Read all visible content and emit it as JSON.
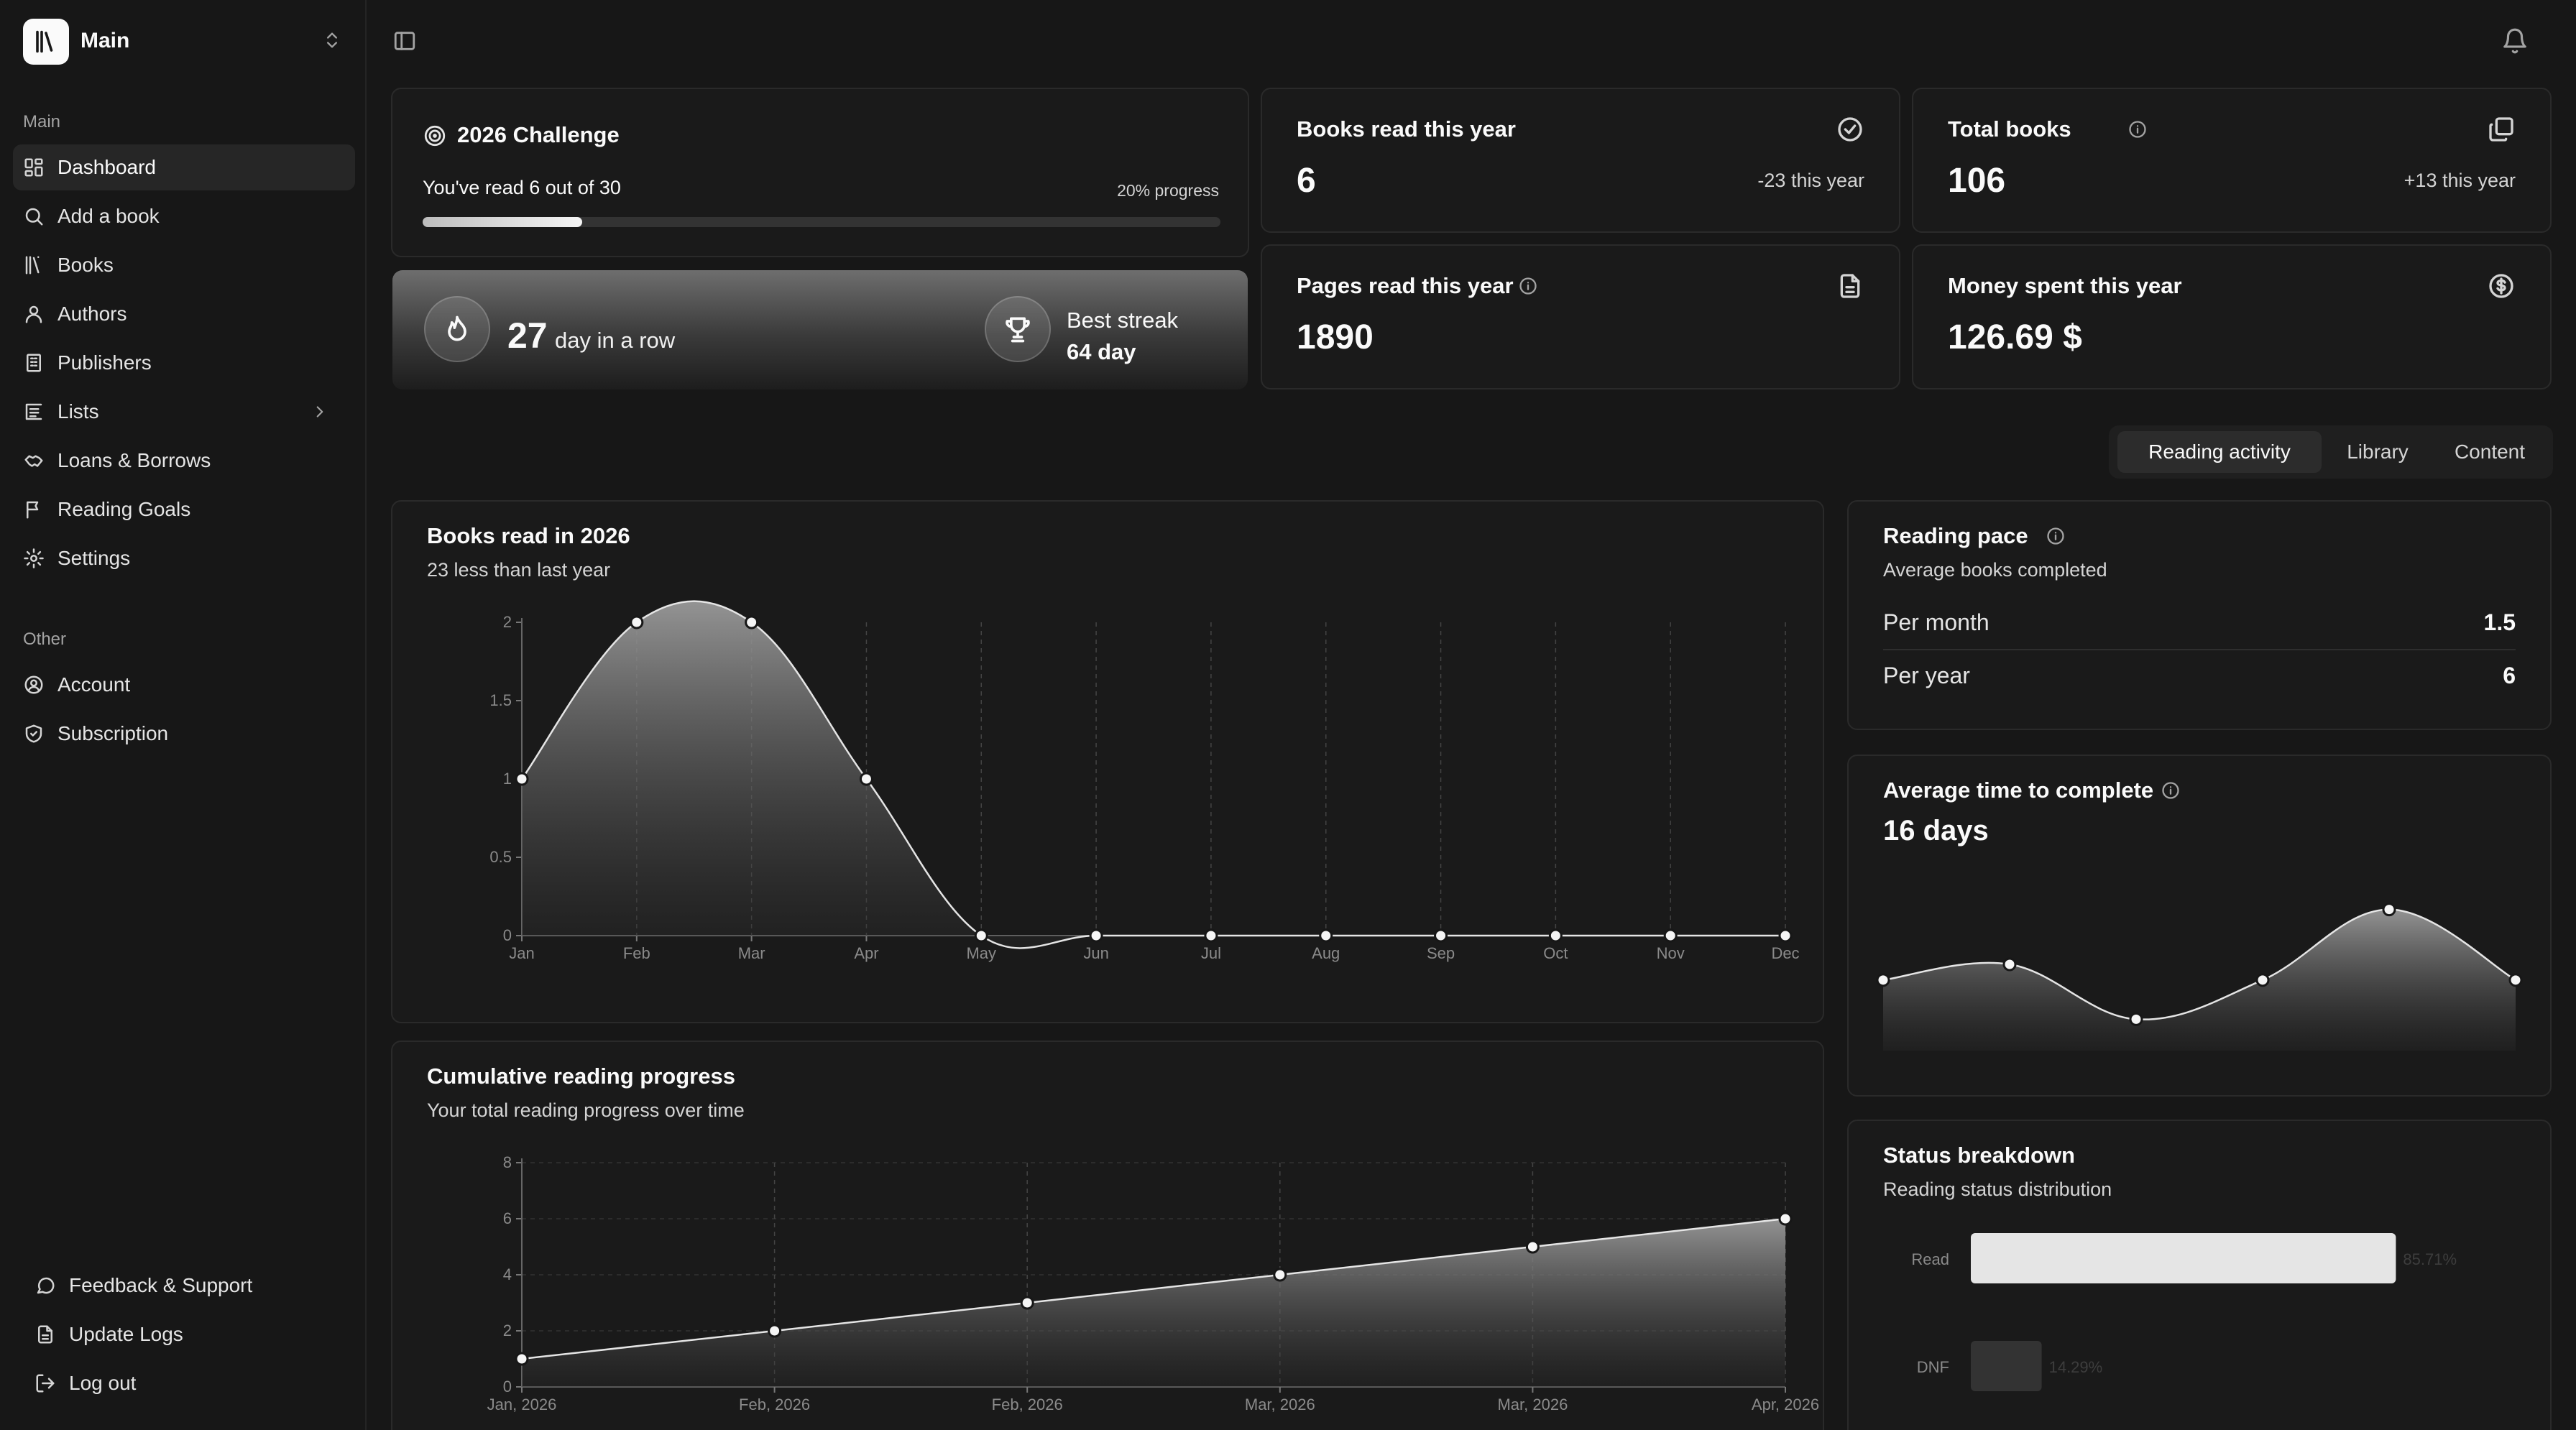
{
  "sidebar": {
    "team_name": "Main",
    "groups": {
      "main": "Main",
      "other": "Other"
    },
    "main_items": [
      {
        "label": "Dashboard",
        "icon": "dashboard-icon",
        "active": true
      },
      {
        "label": "Add a book",
        "icon": "search-icon"
      },
      {
        "label": "Books",
        "icon": "library-icon"
      },
      {
        "label": "Authors",
        "icon": "user-icon"
      },
      {
        "label": "Publishers",
        "icon": "building-icon"
      },
      {
        "label": "Lists",
        "icon": "list-icon",
        "has_submenu": true
      },
      {
        "label": "Loans & Borrows",
        "icon": "handshake-icon"
      },
      {
        "label": "Reading Goals",
        "icon": "flag-icon"
      },
      {
        "label": "Settings",
        "icon": "gear-icon"
      }
    ],
    "other_items": [
      {
        "label": "Account",
        "icon": "user-circle-icon"
      },
      {
        "label": "Subscription",
        "icon": "shield-icon"
      }
    ],
    "footer_items": [
      {
        "label": "Feedback & Support",
        "icon": "message-icon"
      },
      {
        "label": "Update Logs",
        "icon": "file-icon"
      },
      {
        "label": "Log out",
        "icon": "logout-icon"
      }
    ]
  },
  "challenge": {
    "title": "2026 Challenge",
    "progress_text": "You've read 6 out of 30",
    "progress_label": "20% progress",
    "progress_fraction": 0.2
  },
  "streak": {
    "count": "27",
    "count_suffix": "day in a row",
    "best_label": "Best streak",
    "best_value": "64 day"
  },
  "stats": {
    "books_read": {
      "title": "Books read this year",
      "value": "6",
      "delta": "-23 this year"
    },
    "total_books": {
      "title": "Total books",
      "value": "106",
      "delta": "+13 this year"
    },
    "pages_read": {
      "title": "Pages read this year",
      "value": "1890"
    },
    "money_spent": {
      "title": "Money spent this year",
      "value": "126.69 $"
    }
  },
  "tabs": [
    "Reading activity",
    "Library",
    "Content"
  ],
  "books_chart": {
    "title": "Books read in 2026",
    "subtitle": "23 less than last year"
  },
  "cumulative_chart": {
    "title": "Cumulative reading progress",
    "subtitle": "Your total reading progress over time"
  },
  "reading_pace": {
    "title": "Reading pace",
    "subtitle": "Average books completed",
    "rows": [
      {
        "label": "Per month",
        "value": "1.5"
      },
      {
        "label": "Per year",
        "value": "6"
      }
    ]
  },
  "avg_time": {
    "title": "Average time to complete",
    "value": "16 days"
  },
  "status": {
    "title": "Status breakdown",
    "subtitle": "Reading status distribution"
  },
  "colors": {
    "background": "#171717",
    "card": "#1a1a1a",
    "accent": "#fafafa",
    "muted": "#a3a3a3"
  },
  "chart_data": [
    {
      "type": "area",
      "categories": [
        "Jan",
        "Feb",
        "Mar",
        "Apr",
        "May",
        "Jun",
        "Jul",
        "Aug",
        "Sep",
        "Oct",
        "Nov",
        "Dec"
      ],
      "values": [
        1,
        2,
        2,
        1,
        0,
        0,
        0,
        0,
        0,
        0,
        0,
        0
      ],
      "y_ticks": [
        "0",
        "0.5",
        "1",
        "1.5",
        "2"
      ],
      "ylim": [
        0,
        2
      ],
      "grid": "vertical-dashed"
    },
    {
      "type": "area",
      "categories": [
        "Jan, 2026",
        "Feb, 2026",
        "Feb, 2026",
        "Mar, 2026",
        "Mar, 2026",
        "Apr, 2026"
      ],
      "values": [
        1,
        2,
        3,
        4,
        5,
        6
      ],
      "y_ticks": [
        "0",
        "2",
        "4",
        "6",
        "8"
      ],
      "ylim": [
        0,
        8
      ],
      "grid": "both-dashed"
    },
    {
      "type": "area",
      "values": [
        18,
        20,
        13,
        18,
        27,
        18
      ],
      "axes": "hidden"
    },
    {
      "type": "bar",
      "orientation": "horizontal",
      "categories": [
        "Read",
        "DNF"
      ],
      "values": [
        85.71,
        14.29
      ],
      "value_labels": [
        "85.71%",
        "14.29%"
      ],
      "colors": [
        "#e5e5e5",
        "#333333"
      ]
    }
  ]
}
